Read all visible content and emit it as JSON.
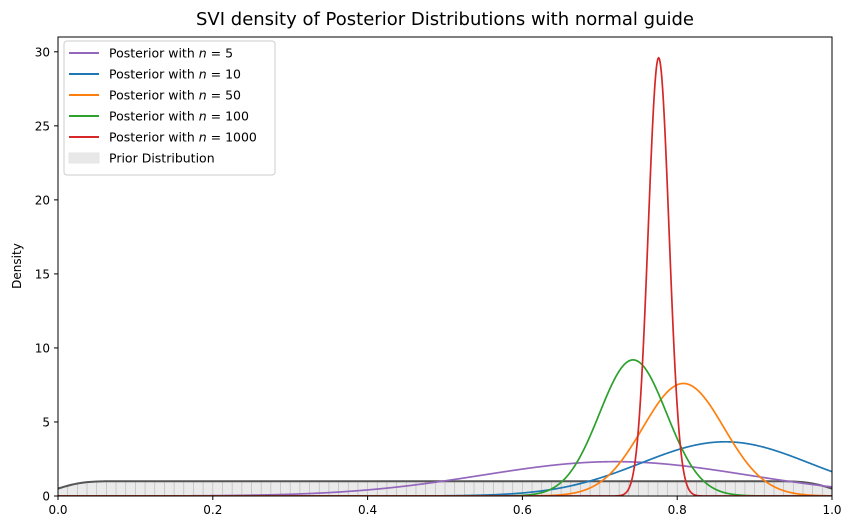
{
  "chart_data": {
    "type": "line",
    "title": "SVI density of Posterior Distributions with normal guide",
    "xlabel": "",
    "ylabel": "Density",
    "xlim": [
      0.0,
      1.0
    ],
    "ylim": [
      0,
      31
    ],
    "xticks": [
      0.0,
      0.2,
      0.4,
      0.6,
      0.8,
      1.0
    ],
    "xtick_labels": [
      "0.0",
      "0.2",
      "0.4",
      "0.6",
      "0.8",
      "1.0"
    ],
    "yticks": [
      0,
      5,
      10,
      15,
      20,
      25,
      30
    ],
    "ytick_labels": [
      "0",
      "5",
      "10",
      "15",
      "20",
      "25",
      "30"
    ],
    "grid": false,
    "legend_position": "top-left",
    "series": [
      {
        "name": "Posterior with n = 5",
        "legend_prefix": "Posterior with ",
        "legend_n": "5",
        "color": "#9467bd",
        "mean": 0.72,
        "sd": 0.172
      },
      {
        "name": "Posterior with n = 10",
        "legend_prefix": "Posterior with ",
        "legend_n": "10",
        "color": "#1f77b4",
        "mean": 0.862,
        "sd": 0.109
      },
      {
        "name": "Posterior with n = 50",
        "legend_prefix": "Posterior with ",
        "legend_n": "50",
        "color": "#ff7f0e",
        "mean": 0.808,
        "sd": 0.0525
      },
      {
        "name": "Posterior with n = 100",
        "legend_prefix": "Posterior with ",
        "legend_n": "100",
        "color": "#2ca02c",
        "mean": 0.743,
        "sd": 0.0434
      },
      {
        "name": "Posterior with n = 1000",
        "legend_prefix": "Posterior with ",
        "legend_n": "1000",
        "color": "#d62728",
        "mean": 0.776,
        "sd": 0.01348
      }
    ],
    "prior": {
      "name": "Prior Distribution",
      "type": "uniform",
      "density": 1.0,
      "range": [
        0,
        1
      ],
      "fill_color": "#d9d9d9",
      "line_color": "#555555"
    }
  }
}
